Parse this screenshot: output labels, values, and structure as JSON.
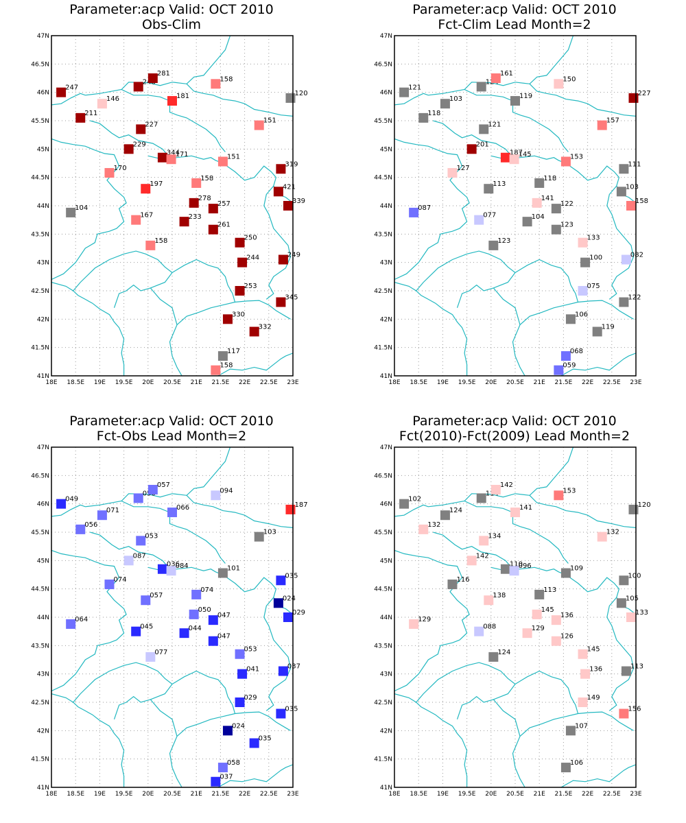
{
  "colors": {
    "coast": "#22b8c0",
    "grid": "#9a9a9a",
    "neutral": "#808080",
    "red_dark": "#a00000",
    "red": "#ff2a2a",
    "red_med": "#ff7a7a",
    "red_light": "#ffc8c8",
    "blue_dark": "#00009a",
    "blue": "#2a2aff",
    "blue_med": "#7070ff",
    "blue_light": "#c8c8ff"
  },
  "axes": {
    "x_ticks": [
      "18E",
      "18.5E",
      "19E",
      "19.5E",
      "20E",
      "20.5E",
      "21E",
      "21.5E",
      "22E",
      "22.5E",
      "23E"
    ],
    "y_ticks": [
      "41N",
      "41.5N",
      "42N",
      "42.5N",
      "43N",
      "43.5N",
      "44N",
      "44.5N",
      "45N",
      "45.5N",
      "46N",
      "46.5N",
      "47N"
    ],
    "lon_range": [
      18,
      23
    ],
    "lat_range": [
      41,
      47
    ]
  },
  "panels": [
    {
      "title1": "Parameter:acp Valid: OCT 2010",
      "title2": "Obs-Clim",
      "stations": [
        {
          "lon": 18.2,
          "lat": 46.0,
          "label": "247",
          "color": "red_dark"
        },
        {
          "lon": 19.8,
          "lat": 46.1,
          "label": "248",
          "color": "red_dark"
        },
        {
          "lon": 20.1,
          "lat": 46.25,
          "label": "281",
          "color": "red_dark"
        },
        {
          "lon": 21.4,
          "lat": 46.15,
          "label": "158",
          "color": "red_med"
        },
        {
          "lon": 19.05,
          "lat": 45.8,
          "label": "146",
          "color": "red_light"
        },
        {
          "lon": 20.5,
          "lat": 45.85,
          "label": "181",
          "color": "red"
        },
        {
          "lon": 22.95,
          "lat": 45.9,
          "label": "120",
          "color": "neutral"
        },
        {
          "lon": 18.6,
          "lat": 45.55,
          "label": "211",
          "color": "red_dark"
        },
        {
          "lon": 19.85,
          "lat": 45.35,
          "label": "227",
          "color": "red_dark"
        },
        {
          "lon": 22.3,
          "lat": 45.42,
          "label": "151",
          "color": "red_med"
        },
        {
          "lon": 19.6,
          "lat": 45.0,
          "label": "229",
          "color": "red_dark"
        },
        {
          "lon": 20.3,
          "lat": 44.85,
          "label": "344",
          "color": "red_dark"
        },
        {
          "lon": 20.48,
          "lat": 44.82,
          "label": "171",
          "color": "red_med"
        },
        {
          "lon": 21.55,
          "lat": 44.78,
          "label": "151",
          "color": "red_med"
        },
        {
          "lon": 22.75,
          "lat": 44.65,
          "label": "319",
          "color": "red_dark"
        },
        {
          "lon": 19.2,
          "lat": 44.58,
          "label": "170",
          "color": "red_med"
        },
        {
          "lon": 19.95,
          "lat": 44.3,
          "label": "197",
          "color": "red"
        },
        {
          "lon": 21.0,
          "lat": 44.4,
          "label": "158",
          "color": "red_med"
        },
        {
          "lon": 22.7,
          "lat": 44.25,
          "label": "421",
          "color": "red_dark"
        },
        {
          "lon": 20.95,
          "lat": 44.05,
          "label": "278",
          "color": "red_dark"
        },
        {
          "lon": 21.35,
          "lat": 43.95,
          "label": "257",
          "color": "red_dark"
        },
        {
          "lon": 22.9,
          "lat": 44.0,
          "label": "339",
          "color": "red_dark"
        },
        {
          "lon": 18.4,
          "lat": 43.88,
          "label": "104",
          "color": "neutral"
        },
        {
          "lon": 19.75,
          "lat": 43.75,
          "label": "167",
          "color": "red_med"
        },
        {
          "lon": 20.75,
          "lat": 43.72,
          "label": "233",
          "color": "red_dark"
        },
        {
          "lon": 21.35,
          "lat": 43.58,
          "label": "261",
          "color": "red_dark"
        },
        {
          "lon": 21.9,
          "lat": 43.35,
          "label": "250",
          "color": "red_dark"
        },
        {
          "lon": 20.05,
          "lat": 43.3,
          "label": "158",
          "color": "red_med"
        },
        {
          "lon": 21.95,
          "lat": 43.0,
          "label": "244",
          "color": "red_dark"
        },
        {
          "lon": 22.8,
          "lat": 43.05,
          "label": "249",
          "color": "red_dark"
        },
        {
          "lon": 21.9,
          "lat": 42.5,
          "label": "253",
          "color": "red_dark"
        },
        {
          "lon": 22.75,
          "lat": 42.3,
          "label": "345",
          "color": "red_dark"
        },
        {
          "lon": 21.65,
          "lat": 42.0,
          "label": "330",
          "color": "red_dark"
        },
        {
          "lon": 22.2,
          "lat": 41.78,
          "label": "332",
          "color": "red_dark"
        },
        {
          "lon": 21.55,
          "lat": 41.35,
          "label": "117",
          "color": "neutral"
        },
        {
          "lon": 21.4,
          "lat": 41.1,
          "label": "158",
          "color": "red_med"
        }
      ]
    },
    {
      "title1": "Parameter:acp Valid: OCT 2010",
      "title2": "Fct-Clim Lead Month=2",
      "stations": [
        {
          "lon": 18.2,
          "lat": 46.0,
          "label": "121",
          "color": "neutral"
        },
        {
          "lon": 19.8,
          "lat": 46.1,
          "label": "124",
          "color": "neutral"
        },
        {
          "lon": 20.1,
          "lat": 46.25,
          "label": "161",
          "color": "red_med"
        },
        {
          "lon": 21.4,
          "lat": 46.15,
          "label": "150",
          "color": "red_light"
        },
        {
          "lon": 19.05,
          "lat": 45.8,
          "label": "103",
          "color": "neutral"
        },
        {
          "lon": 20.5,
          "lat": 45.85,
          "label": "119",
          "color": "neutral"
        },
        {
          "lon": 22.95,
          "lat": 45.9,
          "label": "227",
          "color": "red_dark"
        },
        {
          "lon": 18.6,
          "lat": 45.55,
          "label": "118",
          "color": "neutral"
        },
        {
          "lon": 19.85,
          "lat": 45.35,
          "label": "121",
          "color": "neutral"
        },
        {
          "lon": 22.3,
          "lat": 45.42,
          "label": "157",
          "color": "red_med"
        },
        {
          "lon": 19.6,
          "lat": 45.0,
          "label": "201",
          "color": "red_dark"
        },
        {
          "lon": 20.3,
          "lat": 44.85,
          "label": "187",
          "color": "red"
        },
        {
          "lon": 20.48,
          "lat": 44.82,
          "label": "145",
          "color": "red_light"
        },
        {
          "lon": 21.55,
          "lat": 44.78,
          "label": "153",
          "color": "red_med"
        },
        {
          "lon": 22.75,
          "lat": 44.65,
          "label": "111",
          "color": "neutral"
        },
        {
          "lon": 19.2,
          "lat": 44.58,
          "label": "127",
          "color": "red_light"
        },
        {
          "lon": 19.95,
          "lat": 44.3,
          "label": "113",
          "color": "neutral"
        },
        {
          "lon": 21.0,
          "lat": 44.4,
          "label": "118",
          "color": "neutral"
        },
        {
          "lon": 22.7,
          "lat": 44.25,
          "label": "103",
          "color": "neutral"
        },
        {
          "lon": 20.95,
          "lat": 44.05,
          "label": "141",
          "color": "red_light"
        },
        {
          "lon": 21.35,
          "lat": 43.95,
          "label": "122",
          "color": "neutral"
        },
        {
          "lon": 22.9,
          "lat": 44.0,
          "label": "158",
          "color": "red_med"
        },
        {
          "lon": 18.4,
          "lat": 43.88,
          "label": "087",
          "color": "blue_med"
        },
        {
          "lon": 19.75,
          "lat": 43.75,
          "label": "077",
          "color": "blue_light"
        },
        {
          "lon": 20.75,
          "lat": 43.72,
          "label": "104",
          "color": "neutral"
        },
        {
          "lon": 21.35,
          "lat": 43.58,
          "label": "123",
          "color": "neutral"
        },
        {
          "lon": 21.9,
          "lat": 43.35,
          "label": "133",
          "color": "red_light"
        },
        {
          "lon": 20.05,
          "lat": 43.3,
          "label": "123",
          "color": "neutral"
        },
        {
          "lon": 21.95,
          "lat": 43.0,
          "label": "100",
          "color": "neutral"
        },
        {
          "lon": 22.8,
          "lat": 43.05,
          "label": "082",
          "color": "blue_light"
        },
        {
          "lon": 21.9,
          "lat": 42.5,
          "label": "075",
          "color": "blue_light"
        },
        {
          "lon": 22.75,
          "lat": 42.3,
          "label": "122",
          "color": "neutral"
        },
        {
          "lon": 21.65,
          "lat": 42.0,
          "label": "106",
          "color": "neutral"
        },
        {
          "lon": 22.2,
          "lat": 41.78,
          "label": "119",
          "color": "neutral"
        },
        {
          "lon": 21.55,
          "lat": 41.35,
          "label": "068",
          "color": "blue_med"
        },
        {
          "lon": 21.4,
          "lat": 41.1,
          "label": "059",
          "color": "blue_med"
        }
      ]
    },
    {
      "title1": "Parameter:acp Valid: OCT 2010",
      "title2": "Fct-Obs Lead Month=2",
      "stations": [
        {
          "lon": 18.2,
          "lat": 46.0,
          "label": "049",
          "color": "blue"
        },
        {
          "lon": 19.8,
          "lat": 46.1,
          "label": "050",
          "color": "blue_med"
        },
        {
          "lon": 20.1,
          "lat": 46.25,
          "label": "057",
          "color": "blue_med"
        },
        {
          "lon": 21.4,
          "lat": 46.15,
          "label": "094",
          "color": "blue_light"
        },
        {
          "lon": 19.05,
          "lat": 45.8,
          "label": "071",
          "color": "blue_med"
        },
        {
          "lon": 20.5,
          "lat": 45.85,
          "label": "066",
          "color": "blue_med"
        },
        {
          "lon": 22.95,
          "lat": 45.9,
          "label": "187",
          "color": "red"
        },
        {
          "lon": 18.6,
          "lat": 45.55,
          "label": "056",
          "color": "blue_med"
        },
        {
          "lon": 19.85,
          "lat": 45.35,
          "label": "053",
          "color": "blue_med"
        },
        {
          "lon": 22.3,
          "lat": 45.42,
          "label": "103",
          "color": "neutral"
        },
        {
          "lon": 19.6,
          "lat": 45.0,
          "label": "087",
          "color": "blue_light"
        },
        {
          "lon": 20.3,
          "lat": 44.85,
          "label": "036",
          "color": "blue"
        },
        {
          "lon": 20.48,
          "lat": 44.82,
          "label": "084",
          "color": "blue_light"
        },
        {
          "lon": 21.55,
          "lat": 44.78,
          "label": "101",
          "color": "neutral"
        },
        {
          "lon": 22.75,
          "lat": 44.65,
          "label": "035",
          "color": "blue"
        },
        {
          "lon": 19.2,
          "lat": 44.58,
          "label": "074",
          "color": "blue_med"
        },
        {
          "lon": 19.95,
          "lat": 44.3,
          "label": "057",
          "color": "blue_med"
        },
        {
          "lon": 21.0,
          "lat": 44.4,
          "label": "074",
          "color": "blue_med"
        },
        {
          "lon": 22.7,
          "lat": 44.25,
          "label": "024",
          "color": "blue_dark"
        },
        {
          "lon": 20.95,
          "lat": 44.05,
          "label": "050",
          "color": "blue_med"
        },
        {
          "lon": 21.35,
          "lat": 43.95,
          "label": "047",
          "color": "blue"
        },
        {
          "lon": 22.9,
          "lat": 44.0,
          "label": "029",
          "color": "blue"
        },
        {
          "lon": 18.4,
          "lat": 43.88,
          "label": "064",
          "color": "blue_med"
        },
        {
          "lon": 19.75,
          "lat": 43.75,
          "label": "045",
          "color": "blue"
        },
        {
          "lon": 20.75,
          "lat": 43.72,
          "label": "044",
          "color": "blue"
        },
        {
          "lon": 21.35,
          "lat": 43.58,
          "label": "047",
          "color": "blue"
        },
        {
          "lon": 21.9,
          "lat": 43.35,
          "label": "053",
          "color": "blue_med"
        },
        {
          "lon": 20.05,
          "lat": 43.3,
          "label": "077",
          "color": "blue_light"
        },
        {
          "lon": 21.95,
          "lat": 43.0,
          "label": "041",
          "color": "blue"
        },
        {
          "lon": 22.8,
          "lat": 43.05,
          "label": "037",
          "color": "blue"
        },
        {
          "lon": 21.9,
          "lat": 42.5,
          "label": "029",
          "color": "blue"
        },
        {
          "lon": 22.75,
          "lat": 42.3,
          "label": "035",
          "color": "blue"
        },
        {
          "lon": 21.65,
          "lat": 42.0,
          "label": "024",
          "color": "blue_dark"
        },
        {
          "lon": 22.2,
          "lat": 41.78,
          "label": "035",
          "color": "blue"
        },
        {
          "lon": 21.55,
          "lat": 41.35,
          "label": "058",
          "color": "blue_med"
        },
        {
          "lon": 21.4,
          "lat": 41.1,
          "label": "037",
          "color": "blue"
        }
      ]
    },
    {
      "title1": "Parameter:acp Valid: OCT 2010",
      "title2": "Fct(2010)-Fct(2009) Lead Month=2",
      "stations": [
        {
          "lon": 18.2,
          "lat": 46.0,
          "label": "102",
          "color": "neutral"
        },
        {
          "lon": 19.8,
          "lat": 46.1,
          "label": "114",
          "color": "neutral"
        },
        {
          "lon": 20.1,
          "lat": 46.25,
          "label": "142",
          "color": "red_light"
        },
        {
          "lon": 21.4,
          "lat": 46.15,
          "label": "153",
          "color": "red_med"
        },
        {
          "lon": 19.05,
          "lat": 45.8,
          "label": "124",
          "color": "neutral"
        },
        {
          "lon": 20.5,
          "lat": 45.85,
          "label": "141",
          "color": "red_light"
        },
        {
          "lon": 22.95,
          "lat": 45.9,
          "label": "120",
          "color": "neutral"
        },
        {
          "lon": 18.6,
          "lat": 45.55,
          "label": "132",
          "color": "red_light"
        },
        {
          "lon": 19.85,
          "lat": 45.35,
          "label": "134",
          "color": "red_light"
        },
        {
          "lon": 22.3,
          "lat": 45.42,
          "label": "132",
          "color": "red_light"
        },
        {
          "lon": 19.6,
          "lat": 45.0,
          "label": "142",
          "color": "red_light"
        },
        {
          "lon": 20.3,
          "lat": 44.85,
          "label": "110",
          "color": "neutral"
        },
        {
          "lon": 20.48,
          "lat": 44.82,
          "label": "096",
          "color": "blue_light"
        },
        {
          "lon": 21.55,
          "lat": 44.78,
          "label": "109",
          "color": "neutral"
        },
        {
          "lon": 22.75,
          "lat": 44.65,
          "label": "100",
          "color": "neutral"
        },
        {
          "lon": 19.2,
          "lat": 44.58,
          "label": "116",
          "color": "neutral"
        },
        {
          "lon": 19.95,
          "lat": 44.3,
          "label": "138",
          "color": "red_light"
        },
        {
          "lon": 21.0,
          "lat": 44.4,
          "label": "113",
          "color": "neutral"
        },
        {
          "lon": 22.7,
          "lat": 44.25,
          "label": "105",
          "color": "neutral"
        },
        {
          "lon": 20.95,
          "lat": 44.05,
          "label": "145",
          "color": "red_light"
        },
        {
          "lon": 21.35,
          "lat": 43.95,
          "label": "136",
          "color": "red_light"
        },
        {
          "lon": 22.9,
          "lat": 44.0,
          "label": "133",
          "color": "red_light"
        },
        {
          "lon": 18.4,
          "lat": 43.88,
          "label": "129",
          "color": "red_light"
        },
        {
          "lon": 19.75,
          "lat": 43.75,
          "label": "088",
          "color": "blue_light"
        },
        {
          "lon": 20.75,
          "lat": 43.72,
          "label": "129",
          "color": "red_light"
        },
        {
          "lon": 21.35,
          "lat": 43.58,
          "label": "126",
          "color": "red_light"
        },
        {
          "lon": 21.9,
          "lat": 43.35,
          "label": "145",
          "color": "red_light"
        },
        {
          "lon": 20.05,
          "lat": 43.3,
          "label": "124",
          "color": "neutral"
        },
        {
          "lon": 21.95,
          "lat": 43.0,
          "label": "136",
          "color": "red_light"
        },
        {
          "lon": 22.8,
          "lat": 43.05,
          "label": "113",
          "color": "neutral"
        },
        {
          "lon": 21.9,
          "lat": 42.5,
          "label": "149",
          "color": "red_light"
        },
        {
          "lon": 22.75,
          "lat": 42.3,
          "label": "156",
          "color": "red_med"
        },
        {
          "lon": 21.65,
          "lat": 42.0,
          "label": "107",
          "color": "neutral"
        },
        {
          "lon": 21.55,
          "lat": 41.35,
          "label": "106",
          "color": "neutral"
        }
      ]
    }
  ]
}
